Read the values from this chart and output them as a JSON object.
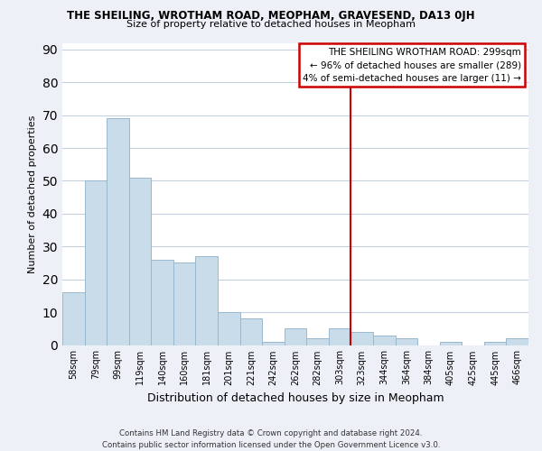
{
  "title": "THE SHEILING, WROTHAM ROAD, MEOPHAM, GRAVESEND, DA13 0JH",
  "subtitle": "Size of property relative to detached houses in Meopham",
  "xlabel": "Distribution of detached houses by size in Meopham",
  "ylabel": "Number of detached properties",
  "bar_labels": [
    "58sqm",
    "79sqm",
    "99sqm",
    "119sqm",
    "140sqm",
    "160sqm",
    "181sqm",
    "201sqm",
    "221sqm",
    "242sqm",
    "262sqm",
    "282sqm",
    "303sqm",
    "323sqm",
    "344sqm",
    "364sqm",
    "384sqm",
    "405sqm",
    "425sqm",
    "445sqm",
    "466sqm"
  ],
  "bar_values": [
    16,
    50,
    69,
    51,
    26,
    25,
    27,
    10,
    8,
    1,
    5,
    2,
    5,
    4,
    3,
    2,
    0,
    1,
    0,
    1,
    2
  ],
  "bar_color": "#c8dcea",
  "bar_edge_color": "#9ab8cc",
  "vline_bar_index": 12,
  "vline_color": "#cc0000",
  "ylim": [
    0,
    92
  ],
  "yticks": [
    0,
    10,
    20,
    30,
    40,
    50,
    60,
    70,
    80,
    90
  ],
  "legend_title": "THE SHEILING WROTHAM ROAD: 299sqm",
  "legend_line1": "← 96% of detached houses are smaller (289)",
  "legend_line2": "4% of semi-detached houses are larger (11) →",
  "footer_line1": "Contains HM Land Registry data © Crown copyright and database right 2024.",
  "footer_line2": "Contains public sector information licensed under the Open Government Licence v3.0.",
  "bg_color": "#edf1f7",
  "plot_bg_color": "#ffffff",
  "grid_color": "#c5d0de"
}
